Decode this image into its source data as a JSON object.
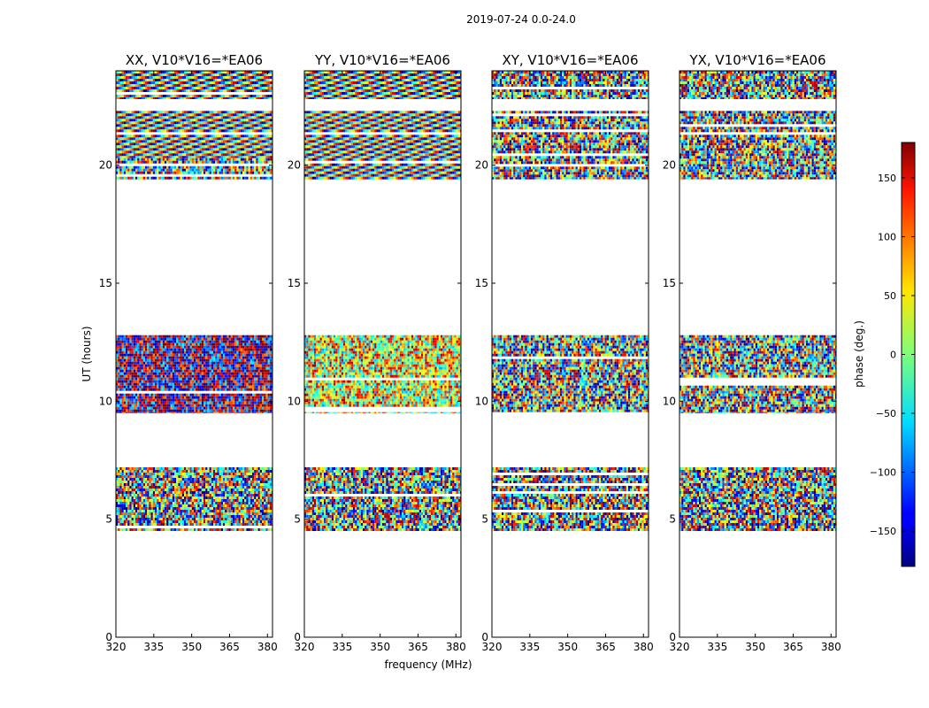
{
  "figure_title": "2019-07-24 0.0-24.0",
  "shared_xlabel": "frequency (MHz)",
  "shared_ylabel": "UT (hours)",
  "colorbar": {
    "label": "phase (deg.)",
    "range": [
      -180,
      180
    ],
    "ticks": [
      150,
      100,
      50,
      0,
      -50,
      -100,
      -150
    ],
    "tick_labels": [
      "150",
      "100",
      "50",
      "0",
      "−50",
      "−100",
      "−150"
    ],
    "colormap": "jet"
  },
  "chart_data": [
    {
      "type": "heatmap",
      "title": "XX, V10*V16=*EA06",
      "xlabel": "",
      "ylabel": "UT (hours)",
      "xlim": [
        320,
        382
      ],
      "ylim": [
        0,
        24
      ],
      "xticks": [
        320,
        335,
        350,
        365,
        380
      ],
      "yticks": [
        0,
        5,
        10,
        15,
        20
      ],
      "value": "phase (deg.)",
      "bands": [
        {
          "from": 4.5,
          "to": 7.2,
          "pattern": "noise"
        },
        {
          "from": 9.5,
          "to": 12.8,
          "pattern": "red-blue"
        },
        {
          "from": 19.4,
          "to": 20.3,
          "pattern": "noise"
        },
        {
          "from": 20.3,
          "to": 22.3,
          "pattern": "fringe"
        },
        {
          "from": 22.8,
          "to": 24.0,
          "pattern": "fringe"
        }
      ]
    },
    {
      "type": "heatmap",
      "title": "YY, V10*V16=*EA06",
      "xlabel": "frequency (MHz)",
      "ylabel": "",
      "xlim": [
        320,
        382
      ],
      "ylim": [
        0,
        24
      ],
      "xticks": [
        320,
        335,
        350,
        365,
        380
      ],
      "yticks": [
        0,
        5,
        10,
        15,
        20
      ],
      "value": "phase (deg.)",
      "bands": [
        {
          "from": 4.5,
          "to": 7.2,
          "pattern": "noise"
        },
        {
          "from": 9.5,
          "to": 12.8,
          "pattern": "green-red"
        },
        {
          "from": 19.4,
          "to": 20.3,
          "pattern": "fringe"
        },
        {
          "from": 20.3,
          "to": 22.3,
          "pattern": "fringe"
        },
        {
          "from": 22.8,
          "to": 24.0,
          "pattern": "fringe"
        }
      ]
    },
    {
      "type": "heatmap",
      "title": "XY, V10*V16=*EA06",
      "xlabel": "",
      "ylabel": "",
      "xlim": [
        320,
        382
      ],
      "ylim": [
        0,
        24
      ],
      "xticks": [
        320,
        335,
        350,
        365,
        380
      ],
      "yticks": [
        0,
        5,
        10,
        15,
        20
      ],
      "value": "phase (deg.)",
      "bands": [
        {
          "from": 4.5,
          "to": 7.2,
          "pattern": "noise"
        },
        {
          "from": 9.5,
          "to": 12.8,
          "pattern": "noise"
        },
        {
          "from": 19.4,
          "to": 22.3,
          "pattern": "noise"
        },
        {
          "from": 22.8,
          "to": 24.0,
          "pattern": "noise"
        }
      ]
    },
    {
      "type": "heatmap",
      "title": "YX, V10*V16=*EA06",
      "xlabel": "",
      "ylabel": "",
      "xlim": [
        320,
        382
      ],
      "ylim": [
        0,
        24
      ],
      "xticks": [
        320,
        335,
        350,
        365,
        380
      ],
      "yticks": [
        0,
        5,
        10,
        15,
        20
      ],
      "value": "phase (deg.)",
      "bands": [
        {
          "from": 4.5,
          "to": 7.2,
          "pattern": "noise"
        },
        {
          "from": 9.5,
          "to": 12.8,
          "pattern": "noise"
        },
        {
          "from": 19.4,
          "to": 22.3,
          "pattern": "noise"
        },
        {
          "from": 22.8,
          "to": 24.0,
          "pattern": "noise"
        }
      ]
    }
  ]
}
